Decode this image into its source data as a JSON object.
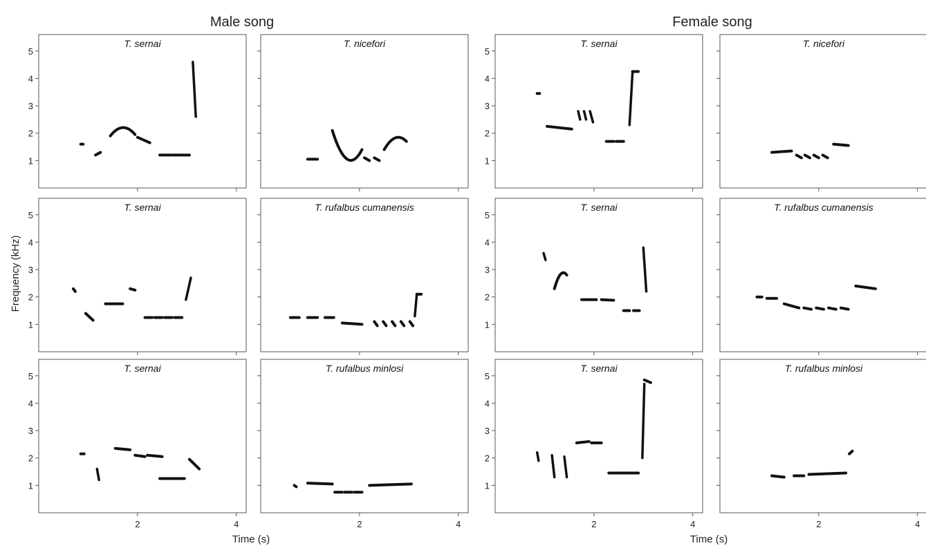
{
  "figure": {
    "group_titles": [
      "Male song",
      "Female song"
    ],
    "ylabel": "Frequency (kHz)",
    "xlabel": "Time (s)",
    "y_ticks": [
      1,
      2,
      3,
      4,
      5
    ],
    "x_ticks": [
      2,
      4
    ],
    "ink_color": "#111111"
  },
  "chart_data": [
    {
      "type": "spectrogram",
      "group": "Male song",
      "title": "T. sernai",
      "xlim": [
        0,
        4.2
      ],
      "ylim": [
        0,
        5.6
      ],
      "notes": [
        {
          "t0": 0.85,
          "t1": 0.9,
          "f0": 1.6,
          "f1": 1.6
        },
        {
          "t0": 1.15,
          "t1": 1.25,
          "f0": 1.2,
          "f1": 1.3
        },
        {
          "t0": 1.45,
          "t1": 1.95,
          "f0": 1.9,
          "f1": 1.95,
          "curve": 0.1
        },
        {
          "t0": 2.0,
          "t1": 2.25,
          "f0": 1.85,
          "f1": 1.65
        },
        {
          "t0": 2.45,
          "t1": 2.55,
          "f0": 1.2,
          "f1": 1.2
        },
        {
          "t0": 2.58,
          "t1": 2.68,
          "f0": 1.2,
          "f1": 1.2
        },
        {
          "t0": 2.71,
          "t1": 2.81,
          "f0": 1.2,
          "f1": 1.2
        },
        {
          "t0": 2.84,
          "t1": 2.94,
          "f0": 1.2,
          "f1": 1.2
        },
        {
          "t0": 2.97,
          "t1": 3.05,
          "f0": 1.2,
          "f1": 1.2
        },
        {
          "t0": 3.12,
          "t1": 3.18,
          "f0": 4.6,
          "f1": 2.6
        }
      ]
    },
    {
      "type": "spectrogram",
      "group": "Male song",
      "title": "T. nicefori",
      "xlim": [
        0,
        4.2
      ],
      "ylim": [
        0,
        5.6
      ],
      "notes": [
        {
          "t0": 0.95,
          "t1": 1.15,
          "f0": 1.05,
          "f1": 1.05
        },
        {
          "t0": 1.45,
          "t1": 2.05,
          "f0": 2.1,
          "f1": 1.4,
          "curve": -0.25
        },
        {
          "t0": 2.1,
          "t1": 2.2,
          "f0": 1.1,
          "f1": 1.0
        },
        {
          "t0": 2.3,
          "t1": 2.4,
          "f0": 1.1,
          "f1": 1.0
        },
        {
          "t0": 2.5,
          "t1": 2.95,
          "f0": 1.4,
          "f1": 1.7,
          "curve": 0.1
        }
      ]
    },
    {
      "type": "spectrogram",
      "group": "Female song",
      "title": "T. sernai",
      "xlim": [
        0,
        4.2
      ],
      "ylim": [
        0,
        5.6
      ],
      "notes": [
        {
          "t0": 0.85,
          "t1": 0.9,
          "f0": 3.45,
          "f1": 3.45
        },
        {
          "t0": 1.05,
          "t1": 1.55,
          "f0": 2.25,
          "f1": 2.15
        },
        {
          "t0": 1.68,
          "t1": 1.72,
          "f0": 2.8,
          "f1": 2.5
        },
        {
          "t0": 1.8,
          "t1": 1.84,
          "f0": 2.8,
          "f1": 2.5
        },
        {
          "t0": 1.92,
          "t1": 1.98,
          "f0": 2.8,
          "f1": 2.4
        },
        {
          "t0": 2.25,
          "t1": 2.4,
          "f0": 1.7,
          "f1": 1.7
        },
        {
          "t0": 2.45,
          "t1": 2.6,
          "f0": 1.7,
          "f1": 1.7
        },
        {
          "t0": 2.72,
          "t1": 2.78,
          "f0": 2.3,
          "f1": 4.2
        },
        {
          "t0": 2.78,
          "t1": 2.9,
          "f0": 4.25,
          "f1": 4.25
        }
      ]
    },
    {
      "type": "spectrogram",
      "group": "Female song",
      "title": "T. nicefori",
      "xlim": [
        0,
        4.2
      ],
      "ylim": [
        0,
        5.6
      ],
      "notes": [
        {
          "t0": 1.05,
          "t1": 1.45,
          "f0": 1.3,
          "f1": 1.35
        },
        {
          "t0": 1.55,
          "t1": 1.65,
          "f0": 1.2,
          "f1": 1.1
        },
        {
          "t0": 1.72,
          "t1": 1.82,
          "f0": 1.2,
          "f1": 1.1
        },
        {
          "t0": 1.9,
          "t1": 2.0,
          "f0": 1.2,
          "f1": 1.1
        },
        {
          "t0": 2.08,
          "t1": 2.18,
          "f0": 1.2,
          "f1": 1.1
        },
        {
          "t0": 2.3,
          "t1": 2.6,
          "f0": 1.6,
          "f1": 1.55
        }
      ]
    },
    {
      "type": "spectrogram",
      "group": "Male song",
      "title": "T. sernai",
      "xlim": [
        0,
        4.2
      ],
      "ylim": [
        0,
        5.6
      ],
      "notes": [
        {
          "t0": 0.7,
          "t1": 0.74,
          "f0": 2.3,
          "f1": 2.2
        },
        {
          "t0": 0.95,
          "t1": 1.1,
          "f0": 1.4,
          "f1": 1.15
        },
        {
          "t0": 1.35,
          "t1": 1.7,
          "f0": 1.75,
          "f1": 1.75
        },
        {
          "t0": 1.85,
          "t1": 1.95,
          "f0": 2.3,
          "f1": 2.25
        },
        {
          "t0": 2.15,
          "t1": 2.3,
          "f0": 1.25,
          "f1": 1.25
        },
        {
          "t0": 2.35,
          "t1": 2.5,
          "f0": 1.25,
          "f1": 1.25
        },
        {
          "t0": 2.55,
          "t1": 2.7,
          "f0": 1.25,
          "f1": 1.25
        },
        {
          "t0": 2.75,
          "t1": 2.9,
          "f0": 1.25,
          "f1": 1.25
        },
        {
          "t0": 2.98,
          "t1": 3.08,
          "f0": 1.9,
          "f1": 2.7
        }
      ]
    },
    {
      "type": "spectrogram",
      "group": "Male song",
      "title": "T. rufalbus cumanensis",
      "xlim": [
        0,
        4.2
      ],
      "ylim": [
        0,
        5.6
      ],
      "notes": [
        {
          "t0": 0.6,
          "t1": 0.78,
          "f0": 1.25,
          "f1": 1.25
        },
        {
          "t0": 0.95,
          "t1": 1.15,
          "f0": 1.25,
          "f1": 1.25
        },
        {
          "t0": 1.3,
          "t1": 1.48,
          "f0": 1.25,
          "f1": 1.25
        },
        {
          "t0": 1.65,
          "t1": 2.05,
          "f0": 1.05,
          "f1": 1.0
        },
        {
          "t0": 2.3,
          "t1": 2.36,
          "f0": 1.1,
          "f1": 0.95
        },
        {
          "t0": 2.48,
          "t1": 2.54,
          "f0": 1.1,
          "f1": 0.95
        },
        {
          "t0": 2.66,
          "t1": 2.72,
          "f0": 1.1,
          "f1": 0.95
        },
        {
          "t0": 2.84,
          "t1": 2.9,
          "f0": 1.1,
          "f1": 0.95
        },
        {
          "t0": 3.02,
          "t1": 3.08,
          "f0": 1.1,
          "f1": 0.95
        },
        {
          "t0": 3.12,
          "t1": 3.16,
          "f0": 1.3,
          "f1": 2.1
        },
        {
          "t0": 3.16,
          "t1": 3.25,
          "f0": 2.1,
          "f1": 2.1
        }
      ]
    },
    {
      "type": "spectrogram",
      "group": "Female song",
      "title": "T. sernai",
      "xlim": [
        0,
        4.2
      ],
      "ylim": [
        0,
        5.6
      ],
      "notes": [
        {
          "t0": 0.98,
          "t1": 1.02,
          "f0": 3.6,
          "f1": 3.35
        },
        {
          "t0": 1.2,
          "t1": 1.45,
          "f0": 2.3,
          "f1": 2.8,
          "curve": 0.1
        },
        {
          "t0": 1.75,
          "t1": 2.05,
          "f0": 1.9,
          "f1": 1.9
        },
        {
          "t0": 2.15,
          "t1": 2.4,
          "f0": 1.9,
          "f1": 1.88
        },
        {
          "t0": 2.6,
          "t1": 2.72,
          "f0": 1.5,
          "f1": 1.5
        },
        {
          "t0": 2.8,
          "t1": 2.92,
          "f0": 1.5,
          "f1": 1.5
        },
        {
          "t0": 3.0,
          "t1": 3.06,
          "f0": 3.8,
          "f1": 2.2
        }
      ]
    },
    {
      "type": "spectrogram",
      "group": "Female song",
      "title": "T. rufalbus cumanensis",
      "xlim": [
        0,
        4.2
      ],
      "ylim": [
        0,
        5.6
      ],
      "notes": [
        {
          "t0": 0.75,
          "t1": 0.85,
          "f0": 2.0,
          "f1": 2.0
        },
        {
          "t0": 0.95,
          "t1": 1.15,
          "f0": 1.95,
          "f1": 1.95
        },
        {
          "t0": 1.3,
          "t1": 1.6,
          "f0": 1.75,
          "f1": 1.6
        },
        {
          "t0": 1.7,
          "t1": 1.85,
          "f0": 1.6,
          "f1": 1.55
        },
        {
          "t0": 1.95,
          "t1": 2.1,
          "f0": 1.6,
          "f1": 1.55
        },
        {
          "t0": 2.2,
          "t1": 2.35,
          "f0": 1.6,
          "f1": 1.55
        },
        {
          "t0": 2.45,
          "t1": 2.6,
          "f0": 1.6,
          "f1": 1.55
        },
        {
          "t0": 2.75,
          "t1": 3.15,
          "f0": 2.4,
          "f1": 2.3
        }
      ]
    },
    {
      "type": "spectrogram",
      "group": "Male song",
      "title": "T. sernai",
      "xlim": [
        0,
        4.2
      ],
      "ylim": [
        0,
        5.6
      ],
      "notes": [
        {
          "t0": 0.85,
          "t1": 0.92,
          "f0": 2.15,
          "f1": 2.15
        },
        {
          "t0": 1.18,
          "t1": 1.22,
          "f0": 1.6,
          "f1": 1.2
        },
        {
          "t0": 1.55,
          "t1": 1.85,
          "f0": 2.35,
          "f1": 2.3
        },
        {
          "t0": 1.95,
          "t1": 2.15,
          "f0": 2.1,
          "f1": 2.05
        },
        {
          "t0": 2.2,
          "t1": 2.5,
          "f0": 2.1,
          "f1": 2.05
        },
        {
          "t0": 2.45,
          "t1": 2.95,
          "f0": 1.25,
          "f1": 1.25
        },
        {
          "t0": 3.05,
          "t1": 3.25,
          "f0": 1.95,
          "f1": 1.6
        }
      ]
    },
    {
      "type": "spectrogram",
      "group": "Male song",
      "title": "T. rufalbus minlosi",
      "xlim": [
        0,
        4.2
      ],
      "ylim": [
        0,
        5.6
      ],
      "notes": [
        {
          "t0": 0.68,
          "t1": 0.72,
          "f0": 1.0,
          "f1": 0.95
        },
        {
          "t0": 0.95,
          "t1": 1.45,
          "f0": 1.08,
          "f1": 1.05
        },
        {
          "t0": 1.5,
          "t1": 1.65,
          "f0": 0.75,
          "f1": 0.75
        },
        {
          "t0": 1.7,
          "t1": 1.85,
          "f0": 0.75,
          "f1": 0.75
        },
        {
          "t0": 1.9,
          "t1": 2.05,
          "f0": 0.75,
          "f1": 0.75
        },
        {
          "t0": 2.2,
          "t1": 3.05,
          "f0": 1.0,
          "f1": 1.05
        }
      ]
    },
    {
      "type": "spectrogram",
      "group": "Female song",
      "title": "T. sernai",
      "xlim": [
        0,
        4.2
      ],
      "ylim": [
        0,
        5.6
      ],
      "notes": [
        {
          "t0": 0.85,
          "t1": 0.88,
          "f0": 2.2,
          "f1": 1.9
        },
        {
          "t0": 1.15,
          "t1": 1.2,
          "f0": 2.1,
          "f1": 1.3
        },
        {
          "t0": 1.4,
          "t1": 1.45,
          "f0": 2.05,
          "f1": 1.3
        },
        {
          "t0": 1.65,
          "t1": 1.9,
          "f0": 2.55,
          "f1": 2.6
        },
        {
          "t0": 1.95,
          "t1": 2.15,
          "f0": 2.55,
          "f1": 2.55
        },
        {
          "t0": 2.3,
          "t1": 2.9,
          "f0": 1.45,
          "f1": 1.45
        },
        {
          "t0": 2.98,
          "t1": 3.02,
          "f0": 2.0,
          "f1": 4.7
        },
        {
          "t0": 3.02,
          "t1": 3.15,
          "f0": 4.85,
          "f1": 4.75
        }
      ]
    },
    {
      "type": "spectrogram",
      "group": "Female song",
      "title": "T. rufalbus minlosi",
      "xlim": [
        0,
        4.2
      ],
      "ylim": [
        0,
        5.6
      ],
      "notes": [
        {
          "t0": 1.05,
          "t1": 1.3,
          "f0": 1.35,
          "f1": 1.3
        },
        {
          "t0": 1.5,
          "t1": 1.7,
          "f0": 1.35,
          "f1": 1.35
        },
        {
          "t0": 1.8,
          "t1": 2.55,
          "f0": 1.4,
          "f1": 1.45
        },
        {
          "t0": 2.62,
          "t1": 2.68,
          "f0": 2.15,
          "f1": 2.25
        }
      ]
    }
  ]
}
